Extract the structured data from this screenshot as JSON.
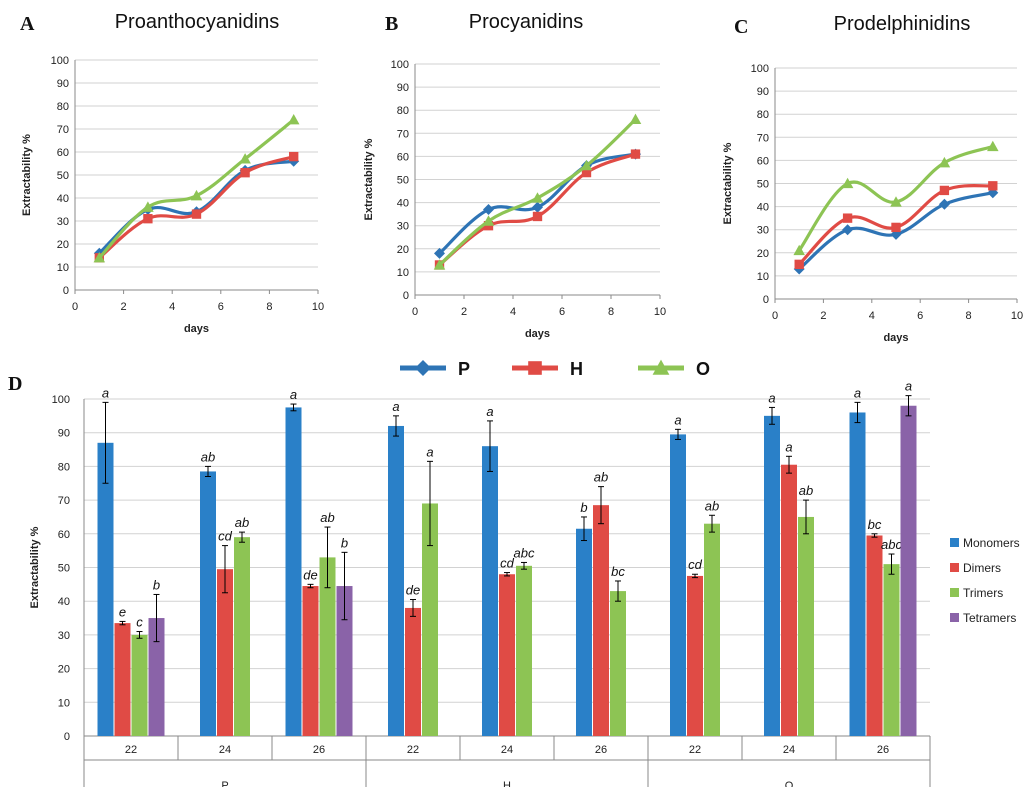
{
  "chart_data": [
    {
      "type": "line",
      "label": "A",
      "title": "Proanthocyanidins",
      "xlabel": "days",
      "ylabel": "Extractability %",
      "xlim": [
        0,
        10
      ],
      "ylim": [
        0,
        100
      ],
      "xticks": [
        "0",
        "2",
        "4",
        "6",
        "8",
        "10"
      ],
      "yticks": [
        "0",
        "10",
        "20",
        "30",
        "40",
        "50",
        "60",
        "70",
        "80",
        "90",
        "100"
      ],
      "x": [
        1,
        3,
        5,
        7,
        9
      ],
      "series": [
        {
          "name": "P",
          "values": [
            16,
            35,
            34,
            52,
            56
          ]
        },
        {
          "name": "H",
          "values": [
            14,
            31,
            33,
            51,
            58
          ]
        },
        {
          "name": "O",
          "values": [
            14,
            36,
            41,
            57,
            74
          ]
        }
      ]
    },
    {
      "type": "line",
      "label": "B",
      "title": "Procyanidins",
      "xlabel": "days",
      "ylabel": "Extractability %",
      "xlim": [
        0,
        10
      ],
      "ylim": [
        0,
        100
      ],
      "xticks": [
        "0",
        "2",
        "4",
        "6",
        "8",
        "10"
      ],
      "yticks": [
        "0",
        "10",
        "20",
        "30",
        "40",
        "50",
        "60",
        "70",
        "80",
        "90",
        "100"
      ],
      "x": [
        1,
        3,
        5,
        7,
        9
      ],
      "series": [
        {
          "name": "P",
          "values": [
            18,
            37,
            38,
            56,
            61
          ]
        },
        {
          "name": "H",
          "values": [
            13,
            30,
            34,
            53,
            61
          ]
        },
        {
          "name": "O",
          "values": [
            13,
            32,
            42,
            56,
            76
          ]
        }
      ]
    },
    {
      "type": "line",
      "label": "C",
      "title": "Prodelphinidins",
      "xlabel": "days",
      "ylabel": "Extractability %",
      "xlim": [
        0,
        10
      ],
      "ylim": [
        0,
        100
      ],
      "xticks": [
        "0",
        "2",
        "4",
        "6",
        "8",
        "10"
      ],
      "yticks": [
        "0",
        "10",
        "20",
        "30",
        "40",
        "50",
        "60",
        "70",
        "80",
        "90",
        "100"
      ],
      "x": [
        1,
        3,
        5,
        7,
        9
      ],
      "series": [
        {
          "name": "P",
          "values": [
            13,
            30,
            28,
            41,
            46
          ]
        },
        {
          "name": "H",
          "values": [
            15,
            35,
            31,
            47,
            49
          ]
        },
        {
          "name": "O",
          "values": [
            21,
            50,
            42,
            59,
            66
          ]
        }
      ]
    },
    {
      "type": "bar",
      "label": "D",
      "ylabel": "Extractability %",
      "ylim": [
        0,
        100
      ],
      "yticks": [
        "0",
        "10",
        "20",
        "30",
        "40",
        "50",
        "60",
        "70",
        "80",
        "90",
        "100"
      ],
      "categories": [
        "22",
        "24",
        "26",
        "22",
        "24",
        "26",
        "22",
        "24",
        "26"
      ],
      "groups": [
        "P",
        "H",
        "O"
      ],
      "series": [
        {
          "name": "Monomers",
          "values": [
            87,
            78.5,
            97.5,
            92,
            86,
            61.5,
            89.5,
            95,
            96
          ],
          "errors": [
            12,
            1.5,
            1,
            3,
            7.5,
            3.5,
            1.5,
            2.5,
            3
          ],
          "labels": [
            "a",
            "ab",
            "a",
            "a",
            "a",
            "b",
            "a",
            "a",
            "a"
          ]
        },
        {
          "name": "Dimers",
          "values": [
            33.5,
            49.5,
            44.5,
            38,
            48,
            68.5,
            47.5,
            80.5,
            59.5
          ],
          "errors": [
            0.5,
            7,
            0.5,
            2.5,
            0.5,
            5.5,
            0.5,
            2.5,
            0.5
          ],
          "labels": [
            "e",
            "cd",
            "de",
            "de",
            "cd",
            "ab",
            "cd",
            "a",
            "bc"
          ]
        },
        {
          "name": "Trimers",
          "values": [
            30,
            59,
            53,
            69,
            50.5,
            43,
            63,
            65,
            51
          ],
          "errors": [
            1,
            1.5,
            9,
            12.5,
            1,
            3,
            2.5,
            5,
            3
          ],
          "labels": [
            "c",
            "ab",
            "ab",
            "a",
            "abc",
            "bc",
            "ab",
            "ab",
            "abc"
          ]
        },
        {
          "name": "Tetramers",
          "values": [
            35,
            null,
            44.5,
            null,
            null,
            null,
            null,
            null,
            98
          ],
          "errors": [
            7,
            null,
            10,
            null,
            null,
            null,
            null,
            null,
            3
          ],
          "labels": [
            "b",
            "",
            "b",
            "",
            "",
            "",
            "",
            "",
            "a"
          ]
        }
      ],
      "legend_position": "right"
    }
  ],
  "legend_lines": {
    "items": [
      {
        "name": "P",
        "color": "#2E74B5",
        "marker": "diamond"
      },
      {
        "name": "H",
        "color": "#E04B45",
        "marker": "square"
      },
      {
        "name": "O",
        "color": "#8DC454",
        "marker": "triangle"
      }
    ]
  },
  "colors": {
    "P": "#2E74B5",
    "H": "#E04B45",
    "O": "#8DC454",
    "Monomers": "#2A80C8",
    "Dimers": "#E04B45",
    "Trimers": "#8DC454",
    "Tetramers": "#8A63A8"
  }
}
